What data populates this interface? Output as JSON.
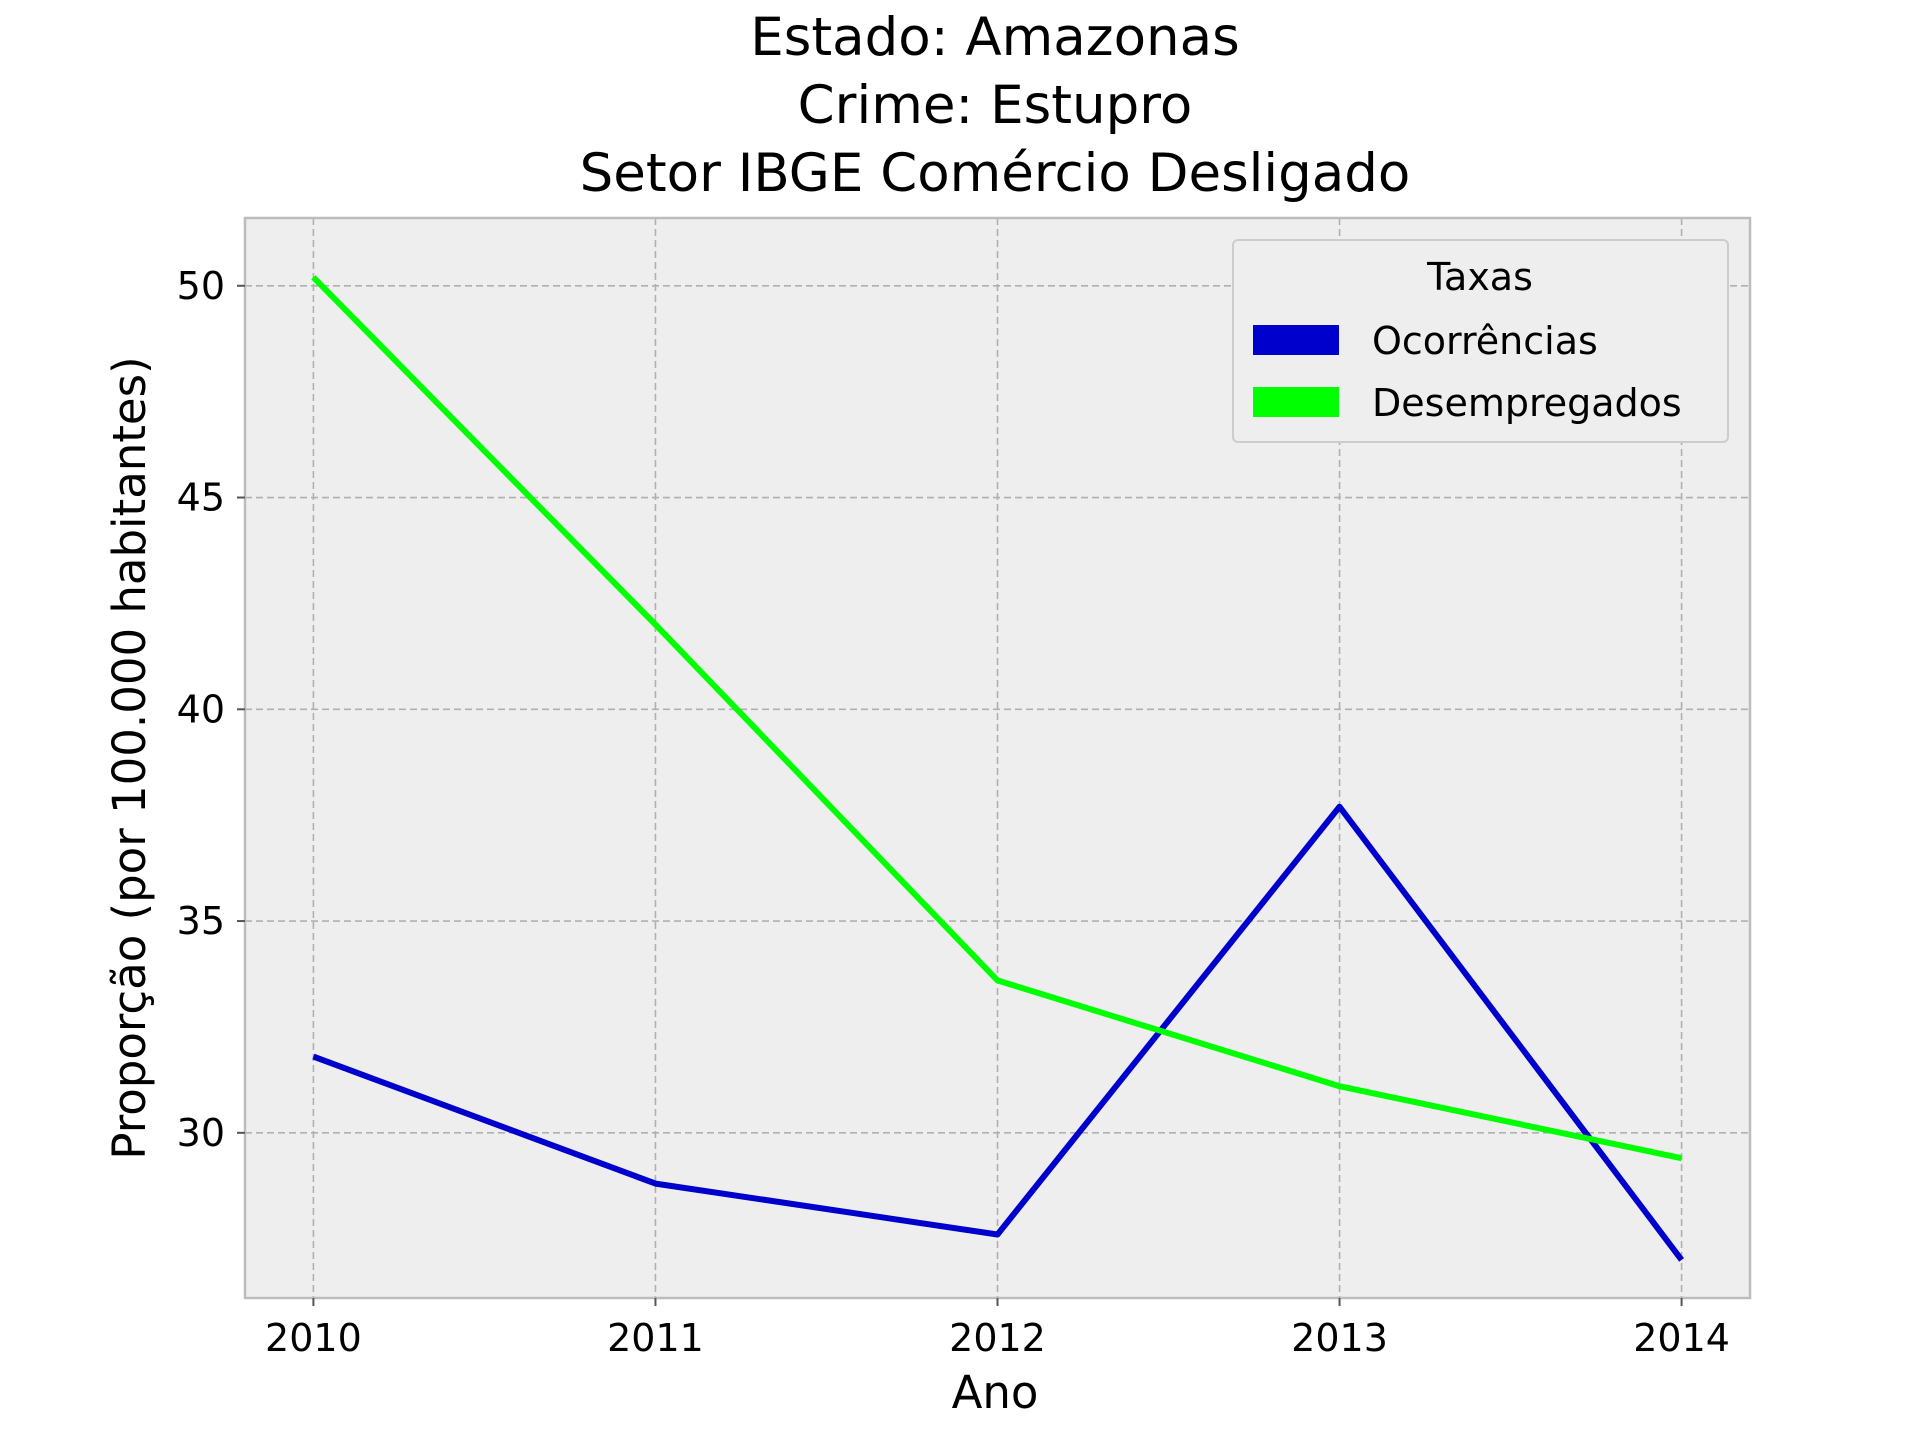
{
  "chart_data": {
    "type": "line",
    "title_lines": [
      "Estado: Amazonas",
      "Crime: Estupro",
      "Setor IBGE  Comércio   Desligado"
    ],
    "xlabel": "Ano",
    "ylabel": "Proporção (por 100.000 habitantes)",
    "x": [
      2010,
      2011,
      2012,
      2013,
      2014
    ],
    "x_tick_labels": [
      "2010",
      "2011",
      "2012",
      "2013",
      "2014"
    ],
    "y_ticks": [
      30,
      35,
      40,
      45,
      50
    ],
    "y_tick_labels": [
      "30",
      "35",
      "40",
      "45",
      "50"
    ],
    "xlim": [
      2009.8,
      2014.2
    ],
    "ylim": [
      26.1,
      51.6
    ],
    "grid": true,
    "legend": {
      "title": "Taxas",
      "placement": "top-right"
    },
    "series": [
      {
        "name": "Ocorrências",
        "color": "#0000cc",
        "values": [
          31.8,
          28.8,
          27.6,
          37.7,
          27.0
        ]
      },
      {
        "name": "Desempregados",
        "color": "#00ff00",
        "values": [
          50.2,
          42.0,
          33.6,
          31.1,
          29.4
        ]
      }
    ],
    "background": "#eeeeee"
  }
}
